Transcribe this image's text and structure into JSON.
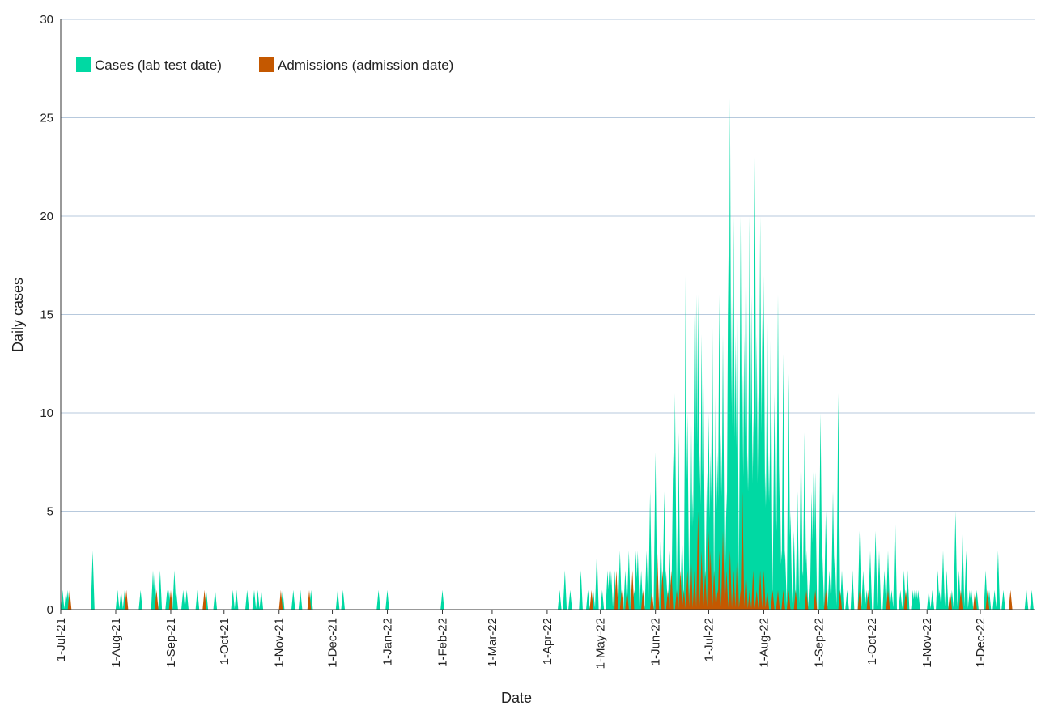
{
  "chart_data": {
    "type": "area",
    "xlabel": "Date",
    "ylabel": "Daily cases",
    "x_ticks": [
      "1-Jul-21",
      "1-Aug-21",
      "1-Sep-21",
      "1-Oct-21",
      "1-Nov-21",
      "1-Dec-21",
      "1-Jan-22",
      "1-Feb-22",
      "1-Mar-22",
      "1-Apr-22",
      "1-May-22",
      "1-Jun-22",
      "1-Jul-22",
      "1-Aug-22",
      "1-Sep-22",
      "1-Oct-22",
      "1-Nov-22",
      "1-Dec-22"
    ],
    "x_range": [
      "2021-07-01",
      "2022-12-31"
    ],
    "ylim": [
      0,
      30
    ],
    "y_ticks": [
      0,
      5,
      10,
      15,
      20,
      25,
      30
    ],
    "grid": "horizontal",
    "legend_position": "top-left",
    "colors": {
      "cases": "#00d9a3",
      "admissions": "#c45800"
    },
    "series": [
      {
        "name": "Cases (lab test date)",
        "color": "#00d9a3",
        "points": [
          [
            "2021-07-02",
            1
          ],
          [
            "2021-07-04",
            1
          ],
          [
            "2021-07-05",
            1
          ],
          [
            "2021-07-19",
            3
          ],
          [
            "2021-08-02",
            1
          ],
          [
            "2021-08-04",
            1
          ],
          [
            "2021-08-06",
            1
          ],
          [
            "2021-08-15",
            1
          ],
          [
            "2021-08-22",
            2
          ],
          [
            "2021-08-23",
            2
          ],
          [
            "2021-08-26",
            2
          ],
          [
            "2021-08-30",
            1
          ],
          [
            "2021-08-31",
            1
          ],
          [
            "2021-09-03",
            2
          ],
          [
            "2021-09-04",
            1
          ],
          [
            "2021-09-08",
            1
          ],
          [
            "2021-09-10",
            1
          ],
          [
            "2021-09-16",
            1
          ],
          [
            "2021-09-21",
            1
          ],
          [
            "2021-09-26",
            1
          ],
          [
            "2021-10-06",
            1
          ],
          [
            "2021-10-08",
            1
          ],
          [
            "2021-10-14",
            1
          ],
          [
            "2021-10-18",
            1
          ],
          [
            "2021-10-20",
            1
          ],
          [
            "2021-10-22",
            1
          ],
          [
            "2021-11-03",
            1
          ],
          [
            "2021-11-09",
            1
          ],
          [
            "2021-11-13",
            1
          ],
          [
            "2021-11-19",
            1
          ],
          [
            "2021-12-04",
            1
          ],
          [
            "2021-12-07",
            1
          ],
          [
            "2021-12-27",
            1
          ],
          [
            "2022-01-01",
            1
          ],
          [
            "2022-02-01",
            1
          ],
          [
            "2022-04-08",
            1
          ],
          [
            "2022-04-11",
            2
          ],
          [
            "2022-04-14",
            1
          ],
          [
            "2022-04-20",
            2
          ],
          [
            "2022-04-24",
            1
          ],
          [
            "2022-04-27",
            1
          ],
          [
            "2022-04-29",
            3
          ],
          [
            "2022-05-02",
            1
          ],
          [
            "2022-05-05",
            2
          ],
          [
            "2022-05-06",
            2
          ],
          [
            "2022-05-07",
            2
          ],
          [
            "2022-05-09",
            2
          ],
          [
            "2022-05-12",
            3
          ],
          [
            "2022-05-15",
            2
          ],
          [
            "2022-05-17",
            3
          ],
          [
            "2022-05-19",
            1
          ],
          [
            "2022-05-20",
            1
          ],
          [
            "2022-05-21",
            3
          ],
          [
            "2022-05-22",
            3
          ],
          [
            "2022-05-24",
            2
          ],
          [
            "2022-05-27",
            3
          ],
          [
            "2022-05-29",
            6
          ],
          [
            "2022-06-01",
            8
          ],
          [
            "2022-06-02",
            2
          ],
          [
            "2022-06-04",
            4
          ],
          [
            "2022-06-06",
            6
          ],
          [
            "2022-06-07",
            2
          ],
          [
            "2022-06-09",
            3
          ],
          [
            "2022-06-11",
            8
          ],
          [
            "2022-06-12",
            11
          ],
          [
            "2022-06-14",
            9
          ],
          [
            "2022-06-16",
            4
          ],
          [
            "2022-06-18",
            17
          ],
          [
            "2022-06-19",
            10
          ],
          [
            "2022-06-21",
            12
          ],
          [
            "2022-06-22",
            6
          ],
          [
            "2022-06-23",
            15
          ],
          [
            "2022-06-24",
            16
          ],
          [
            "2022-06-25",
            16
          ],
          [
            "2022-06-26",
            8
          ],
          [
            "2022-06-27",
            14
          ],
          [
            "2022-06-28",
            12
          ],
          [
            "2022-06-30",
            7
          ],
          [
            "2022-07-01",
            10
          ],
          [
            "2022-07-02",
            8
          ],
          [
            "2022-07-03",
            15
          ],
          [
            "2022-07-05",
            12
          ],
          [
            "2022-07-06",
            8
          ],
          [
            "2022-07-07",
            16
          ],
          [
            "2022-07-08",
            9
          ],
          [
            "2022-07-09",
            14
          ],
          [
            "2022-07-11",
            6
          ],
          [
            "2022-07-12",
            18
          ],
          [
            "2022-07-13",
            26
          ],
          [
            "2022-07-14",
            16
          ],
          [
            "2022-07-15",
            20
          ],
          [
            "2022-07-16",
            14
          ],
          [
            "2022-07-17",
            18
          ],
          [
            "2022-07-19",
            20
          ],
          [
            "2022-07-20",
            12
          ],
          [
            "2022-07-21",
            14
          ],
          [
            "2022-07-22",
            21
          ],
          [
            "2022-07-23",
            8
          ],
          [
            "2022-07-24",
            20
          ],
          [
            "2022-07-25",
            16
          ],
          [
            "2022-07-26",
            10
          ],
          [
            "2022-07-27",
            23
          ],
          [
            "2022-07-28",
            14
          ],
          [
            "2022-07-29",
            11
          ],
          [
            "2022-07-30",
            20
          ],
          [
            "2022-07-31",
            15
          ],
          [
            "2022-08-01",
            17
          ],
          [
            "2022-08-02",
            7
          ],
          [
            "2022-08-03",
            16
          ],
          [
            "2022-08-04",
            8
          ],
          [
            "2022-08-05",
            15
          ],
          [
            "2022-08-07",
            11
          ],
          [
            "2022-08-08",
            5
          ],
          [
            "2022-08-09",
            16
          ],
          [
            "2022-08-10",
            8
          ],
          [
            "2022-08-11",
            3
          ],
          [
            "2022-08-12",
            13
          ],
          [
            "2022-08-13",
            3
          ],
          [
            "2022-08-15",
            12
          ],
          [
            "2022-08-16",
            5
          ],
          [
            "2022-08-18",
            4
          ],
          [
            "2022-08-20",
            6
          ],
          [
            "2022-08-22",
            9
          ],
          [
            "2022-08-23",
            2
          ],
          [
            "2022-08-24",
            9
          ],
          [
            "2022-08-25",
            3
          ],
          [
            "2022-08-27",
            2
          ],
          [
            "2022-08-28",
            6
          ],
          [
            "2022-08-29",
            7
          ],
          [
            "2022-08-30",
            7
          ],
          [
            "2022-09-02",
            10
          ],
          [
            "2022-09-03",
            3
          ],
          [
            "2022-09-05",
            5
          ],
          [
            "2022-09-07",
            2
          ],
          [
            "2022-09-09",
            6
          ],
          [
            "2022-09-10",
            3
          ],
          [
            "2022-09-12",
            11
          ],
          [
            "2022-09-14",
            2
          ],
          [
            "2022-09-17",
            1
          ],
          [
            "2022-09-20",
            2
          ],
          [
            "2022-09-24",
            4
          ],
          [
            "2022-09-26",
            2
          ],
          [
            "2022-09-28",
            1
          ],
          [
            "2022-09-30",
            3
          ],
          [
            "2022-10-03",
            4
          ],
          [
            "2022-10-05",
            3
          ],
          [
            "2022-10-08",
            2
          ],
          [
            "2022-10-10",
            3
          ],
          [
            "2022-10-12",
            1
          ],
          [
            "2022-10-14",
            5
          ],
          [
            "2022-10-17",
            1
          ],
          [
            "2022-10-19",
            2
          ],
          [
            "2022-10-21",
            2
          ],
          [
            "2022-10-24",
            1
          ],
          [
            "2022-10-25",
            1
          ],
          [
            "2022-10-26",
            1
          ],
          [
            "2022-10-27",
            1
          ],
          [
            "2022-11-02",
            1
          ],
          [
            "2022-11-04",
            1
          ],
          [
            "2022-11-07",
            2
          ],
          [
            "2022-11-08",
            1
          ],
          [
            "2022-11-10",
            3
          ],
          [
            "2022-11-12",
            2
          ],
          [
            "2022-11-15",
            1
          ],
          [
            "2022-11-17",
            5
          ],
          [
            "2022-11-19",
            2
          ],
          [
            "2022-11-21",
            4
          ],
          [
            "2022-11-23",
            3
          ],
          [
            "2022-11-25",
            1
          ],
          [
            "2022-11-26",
            1
          ],
          [
            "2022-11-29",
            1
          ],
          [
            "2022-12-04",
            2
          ],
          [
            "2022-12-06",
            1
          ],
          [
            "2022-12-09",
            1
          ],
          [
            "2022-12-11",
            3
          ],
          [
            "2022-12-14",
            1
          ],
          [
            "2022-12-27",
            1
          ],
          [
            "2022-12-30",
            1
          ]
        ]
      },
      {
        "name": "Admissions (admission date)",
        "color": "#c45800",
        "points": [
          [
            "2021-07-06",
            1
          ],
          [
            "2021-08-07",
            1
          ],
          [
            "2021-08-24",
            1
          ],
          [
            "2021-09-01",
            1
          ],
          [
            "2021-09-20",
            1
          ],
          [
            "2021-11-02",
            1
          ],
          [
            "2021-11-18",
            1
          ],
          [
            "2022-04-26",
            1
          ],
          [
            "2022-05-10",
            2
          ],
          [
            "2022-05-13",
            1
          ],
          [
            "2022-05-16",
            1
          ],
          [
            "2022-05-19",
            2
          ],
          [
            "2022-05-25",
            1
          ],
          [
            "2022-05-30",
            1
          ],
          [
            "2022-06-02",
            3
          ],
          [
            "2022-06-05",
            2
          ],
          [
            "2022-06-08",
            1
          ],
          [
            "2022-06-10",
            2
          ],
          [
            "2022-06-13",
            1
          ],
          [
            "2022-06-15",
            2
          ],
          [
            "2022-06-17",
            1
          ],
          [
            "2022-06-19",
            2
          ],
          [
            "2022-06-21",
            3
          ],
          [
            "2022-06-23",
            2
          ],
          [
            "2022-06-25",
            5
          ],
          [
            "2022-06-27",
            3
          ],
          [
            "2022-06-29",
            2
          ],
          [
            "2022-07-01",
            4
          ],
          [
            "2022-07-02",
            3
          ],
          [
            "2022-07-04",
            2
          ],
          [
            "2022-07-06",
            1
          ],
          [
            "2022-07-07",
            3
          ],
          [
            "2022-07-09",
            4
          ],
          [
            "2022-07-11",
            2
          ],
          [
            "2022-07-13",
            3
          ],
          [
            "2022-07-15",
            2
          ],
          [
            "2022-07-17",
            3
          ],
          [
            "2022-07-19",
            1
          ],
          [
            "2022-07-20",
            6
          ],
          [
            "2022-07-22",
            2
          ],
          [
            "2022-07-24",
            1
          ],
          [
            "2022-07-26",
            2
          ],
          [
            "2022-07-28",
            1
          ],
          [
            "2022-07-30",
            2
          ],
          [
            "2022-08-01",
            2
          ],
          [
            "2022-08-03",
            1
          ],
          [
            "2022-08-06",
            1
          ],
          [
            "2022-08-09",
            1
          ],
          [
            "2022-08-12",
            1
          ],
          [
            "2022-08-15",
            1
          ],
          [
            "2022-08-19",
            1
          ],
          [
            "2022-08-25",
            1
          ],
          [
            "2022-08-30",
            1
          ],
          [
            "2022-09-05",
            1
          ],
          [
            "2022-09-13",
            1
          ],
          [
            "2022-09-24",
            1
          ],
          [
            "2022-09-29",
            1
          ],
          [
            "2022-10-10",
            1
          ],
          [
            "2022-10-20",
            1
          ],
          [
            "2022-11-14",
            1
          ],
          [
            "2022-11-20",
            1
          ],
          [
            "2022-11-28",
            1
          ],
          [
            "2022-12-05",
            1
          ],
          [
            "2022-12-18",
            1
          ]
        ]
      }
    ]
  }
}
